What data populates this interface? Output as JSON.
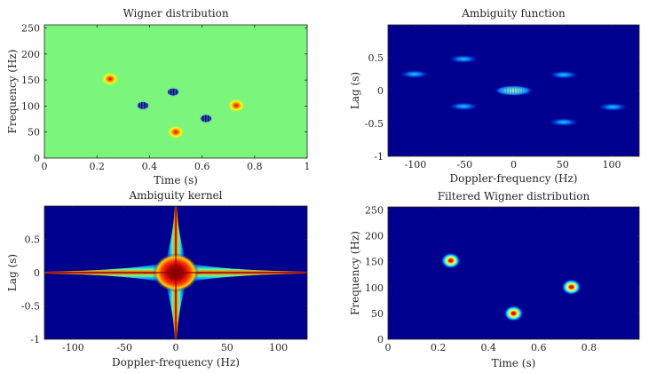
{
  "chart_data": [
    {
      "type": "heatmap",
      "title": "Wigner distribution",
      "xlabel": "Time (s)",
      "ylabel": "Frequency (Hz)",
      "xlim": [
        0,
        1
      ],
      "ylim": [
        0,
        256
      ],
      "xticks": [
        "0",
        "0.2",
        "0.4",
        "0.6",
        "0.8",
        "1"
      ],
      "yticks": [
        "0",
        "50",
        "100",
        "150",
        "200",
        "250"
      ],
      "grid": false,
      "background_color": "#7cf57c",
      "auto_terms": [
        {
          "time": 0.25,
          "frequency": 152
        },
        {
          "time": 0.5,
          "frequency": 50
        },
        {
          "time": 0.73,
          "frequency": 101
        }
      ],
      "cross_terms": [
        {
          "time": 0.375,
          "frequency": 101
        },
        {
          "time": 0.49,
          "frequency": 127
        },
        {
          "time": 0.615,
          "frequency": 76
        }
      ]
    },
    {
      "type": "heatmap",
      "title": "Ambiguity function",
      "xlabel": "Doppler-frequency (Hz)",
      "ylabel": "Lag (s)",
      "xlim": [
        -128,
        128
      ],
      "ylim": [
        -1,
        1
      ],
      "xticks": [
        "-100",
        "-50",
        "0",
        "50",
        "100"
      ],
      "yticks": [
        "-1",
        "-0.5",
        "0",
        "0.5"
      ],
      "grid": false,
      "background_color": "#00008f",
      "components": [
        {
          "doppler": 0,
          "lag": 0
        },
        {
          "doppler": -101,
          "lag": 0.25
        },
        {
          "doppler": -51,
          "lag": 0.48
        },
        {
          "doppler": -51,
          "lag": -0.24
        },
        {
          "doppler": 51,
          "lag": 0.24
        },
        {
          "doppler": 51,
          "lag": -0.48
        },
        {
          "doppler": 101,
          "lag": -0.25
        }
      ]
    },
    {
      "type": "heatmap",
      "title": "Ambiguity kernel",
      "xlabel": "Doppler-frequency (Hz)",
      "ylabel": "Lag (s)",
      "xlim": [
        -128,
        128
      ],
      "ylim": [
        -1,
        1
      ],
      "xticks": [
        "-100",
        "-50",
        "0",
        "50",
        "100"
      ],
      "yticks": [
        "-1",
        "-0.5",
        "0",
        "0.5"
      ],
      "grid": false,
      "background_color": "#00008f",
      "kernel": "cross-shaped, centered at doppler 0, lag 0"
    },
    {
      "type": "heatmap",
      "title": "Filtered Wigner distribution",
      "xlabel": "Time (s)",
      "ylabel": "Frequency (Hz)",
      "xlim": [
        0,
        1
      ],
      "ylim": [
        0,
        256
      ],
      "xticks": [
        "0",
        "0.2",
        "0.4",
        "0.6",
        "0.8"
      ],
      "yticks": [
        "0",
        "50",
        "100",
        "150",
        "200",
        "250"
      ],
      "grid": false,
      "background_color": "#00008f",
      "components": [
        {
          "time": 0.25,
          "frequency": 152
        },
        {
          "time": 0.5,
          "frequency": 50
        },
        {
          "time": 0.73,
          "frequency": 101
        }
      ]
    }
  ]
}
